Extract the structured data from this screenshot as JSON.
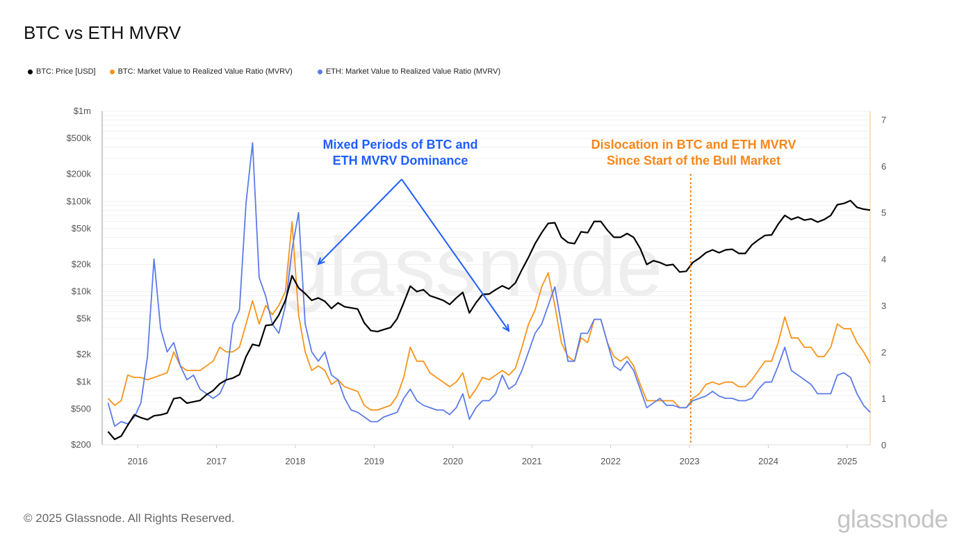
{
  "title": "BTC vs ETH MVRV",
  "footer": "© 2025 Glassnode. All Rights Reserved.",
  "logo": "glassnode",
  "watermark": "glassnode",
  "chart_data": {
    "type": "line",
    "title": "BTC vs ETH MVRV",
    "legend_placement": "top-left",
    "grid": true,
    "left_axis": {
      "scale": "log",
      "range": [
        200,
        1000000
      ],
      "ticks": [
        200,
        500,
        1000,
        2000,
        5000,
        10000,
        20000,
        50000,
        100000,
        200000,
        500000,
        1000000
      ],
      "tick_labels": [
        "$200",
        "$500",
        "$1k",
        "$2k",
        "$5k",
        "$10k",
        "$20k",
        "$50k",
        "$100k",
        "$200k",
        "$500k",
        "$1m"
      ]
    },
    "right_axis": {
      "scale": "linear",
      "range": [
        0,
        7
      ],
      "ticks": [
        0,
        1,
        2,
        3,
        4,
        5,
        6,
        7
      ],
      "tick_labels": [
        "0",
        "1",
        "2",
        "3",
        "4",
        "5",
        "6",
        "7"
      ]
    },
    "x_axis": {
      "range": [
        "2015-08",
        "2025-04"
      ],
      "tick_labels": [
        "2016",
        "2017",
        "2018",
        "2019",
        "2020",
        "2021",
        "2022",
        "2023",
        "2024",
        "2025"
      ]
    },
    "x": [
      "2015-08",
      "2015-09",
      "2015-10",
      "2015-11",
      "2015-12",
      "2016-01",
      "2016-02",
      "2016-03",
      "2016-04",
      "2016-05",
      "2016-06",
      "2016-07",
      "2016-08",
      "2016-09",
      "2016-10",
      "2016-11",
      "2016-12",
      "2017-01",
      "2017-02",
      "2017-03",
      "2017-04",
      "2017-05",
      "2017-06",
      "2017-07",
      "2017-08",
      "2017-09",
      "2017-10",
      "2017-11",
      "2017-12",
      "2018-01",
      "2018-02",
      "2018-03",
      "2018-04",
      "2018-05",
      "2018-06",
      "2018-07",
      "2018-08",
      "2018-09",
      "2018-10",
      "2018-11",
      "2018-12",
      "2019-01",
      "2019-02",
      "2019-03",
      "2019-04",
      "2019-05",
      "2019-06",
      "2019-07",
      "2019-08",
      "2019-09",
      "2019-10",
      "2019-11",
      "2019-12",
      "2020-01",
      "2020-02",
      "2020-03",
      "2020-04",
      "2020-05",
      "2020-06",
      "2020-07",
      "2020-08",
      "2020-09",
      "2020-10",
      "2020-11",
      "2020-12",
      "2021-01",
      "2021-02",
      "2021-03",
      "2021-04",
      "2021-05",
      "2021-06",
      "2021-07",
      "2021-08",
      "2021-09",
      "2021-10",
      "2021-11",
      "2021-12",
      "2022-01",
      "2022-02",
      "2022-03",
      "2022-04",
      "2022-05",
      "2022-06",
      "2022-07",
      "2022-08",
      "2022-09",
      "2022-10",
      "2022-11",
      "2022-12",
      "2023-01",
      "2023-02",
      "2023-03",
      "2023-04",
      "2023-05",
      "2023-06",
      "2023-07",
      "2023-08",
      "2023-09",
      "2023-10",
      "2023-11",
      "2023-12",
      "2024-01",
      "2024-02",
      "2024-03",
      "2024-04",
      "2024-05",
      "2024-06",
      "2024-07",
      "2024-08",
      "2024-09",
      "2024-10",
      "2024-11",
      "2024-12",
      "2025-01",
      "2025-02",
      "2025-03",
      "2025-04"
    ],
    "series": [
      {
        "name": "BTC: Price [USD]",
        "axis": "left",
        "color": "#000000",
        "values": [
          280,
          230,
          250,
          330,
          430,
          400,
          380,
          420,
          430,
          450,
          650,
          670,
          580,
          600,
          620,
          720,
          800,
          950,
          1050,
          1100,
          1200,
          1900,
          2600,
          2500,
          4200,
          4300,
          5500,
          8000,
          15000,
          11000,
          9500,
          8000,
          8500,
          7800,
          6500,
          7500,
          6800,
          6600,
          6400,
          4500,
          3700,
          3600,
          3800,
          4000,
          5000,
          7500,
          11500,
          10000,
          10500,
          9000,
          8500,
          8000,
          7200,
          8500,
          9800,
          5800,
          7500,
          9300,
          9400,
          10500,
          11600,
          10700,
          12500,
          17500,
          24000,
          34000,
          45000,
          57000,
          58000,
          40000,
          35000,
          34000,
          46000,
          45000,
          60000,
          60000,
          48000,
          40000,
          40000,
          44000,
          40000,
          30000,
          20000,
          22000,
          21000,
          19500,
          20000,
          16500,
          16800,
          21000,
          23500,
          27000,
          29000,
          27000,
          29000,
          29500,
          26500,
          26500,
          33000,
          37500,
          42000,
          42500,
          56000,
          70000,
          63000,
          67000,
          62000,
          64000,
          59000,
          63000,
          70000,
          92000,
          95000,
          102000,
          86000,
          82000,
          80000
        ]
      },
      {
        "name": "BTC: Market Value to Realized Value Ratio (MVRV)",
        "axis": "right",
        "color": "#f7931a",
        "values": [
          1.0,
          0.85,
          0.95,
          1.5,
          1.45,
          1.45,
          1.4,
          1.45,
          1.5,
          1.55,
          2.0,
          1.7,
          1.6,
          1.6,
          1.6,
          1.7,
          1.8,
          2.1,
          2.0,
          2.0,
          2.1,
          2.6,
          3.1,
          2.6,
          3.0,
          2.8,
          3.0,
          3.3,
          4.8,
          2.8,
          2.0,
          1.6,
          1.7,
          1.6,
          1.3,
          1.4,
          1.25,
          1.2,
          1.15,
          0.85,
          0.75,
          0.75,
          0.8,
          0.85,
          1.05,
          1.45,
          2.1,
          1.8,
          1.8,
          1.55,
          1.45,
          1.35,
          1.25,
          1.35,
          1.55,
          1.0,
          1.2,
          1.45,
          1.4,
          1.5,
          1.6,
          1.5,
          1.65,
          2.1,
          2.6,
          2.9,
          3.4,
          3.7,
          3.0,
          2.2,
          1.9,
          1.8,
          2.3,
          2.2,
          2.7,
          2.7,
          2.2,
          1.9,
          1.8,
          1.9,
          1.7,
          1.3,
          0.95,
          0.95,
          0.95,
          0.95,
          0.95,
          0.8,
          0.8,
          1.0,
          1.1,
          1.3,
          1.35,
          1.3,
          1.35,
          1.35,
          1.25,
          1.25,
          1.4,
          1.6,
          1.8,
          1.8,
          2.2,
          2.75,
          2.3,
          2.3,
          2.1,
          2.1,
          1.9,
          1.9,
          2.1,
          2.6,
          2.5,
          2.5,
          2.2,
          2.0,
          1.75
        ]
      },
      {
        "name": "ETH: Market Value to Realized Value Ratio (MVRV)",
        "axis": "right",
        "color": "#5b7be9",
        "values": [
          0.9,
          0.4,
          0.5,
          0.45,
          0.6,
          0.9,
          1.9,
          4.0,
          2.5,
          2.0,
          2.2,
          1.7,
          1.4,
          1.5,
          1.2,
          1.1,
          1.0,
          1.1,
          1.4,
          2.6,
          2.9,
          5.2,
          6.5,
          3.6,
          3.2,
          2.6,
          2.4,
          3.0,
          4.2,
          5.0,
          2.6,
          2.0,
          1.8,
          2.0,
          1.5,
          1.4,
          1.0,
          0.75,
          0.7,
          0.6,
          0.5,
          0.5,
          0.6,
          0.65,
          0.7,
          1.0,
          1.2,
          0.95,
          0.85,
          0.8,
          0.75,
          0.75,
          0.65,
          0.8,
          1.1,
          0.55,
          0.8,
          0.95,
          0.95,
          1.1,
          1.5,
          1.2,
          1.3,
          1.6,
          2.0,
          2.4,
          2.6,
          3.0,
          3.4,
          2.6,
          1.8,
          1.8,
          2.4,
          2.4,
          2.7,
          2.7,
          2.2,
          1.7,
          1.6,
          1.8,
          1.6,
          1.2,
          0.8,
          0.9,
          1.0,
          0.85,
          0.85,
          0.8,
          0.8,
          0.95,
          1.0,
          1.05,
          1.15,
          1.05,
          1.0,
          1.0,
          0.95,
          0.95,
          1.0,
          1.2,
          1.35,
          1.35,
          1.7,
          2.1,
          1.6,
          1.5,
          1.4,
          1.3,
          1.1,
          1.1,
          1.1,
          1.5,
          1.55,
          1.45,
          1.1,
          0.85,
          0.7
        ]
      }
    ],
    "annotations": [
      {
        "text_lines": [
          "Mixed Periods of BTC and",
          "ETH MVRV Dominance"
        ],
        "color": "#1f5eff",
        "arrows_to": [
          "2018-04",
          "2020-09"
        ]
      },
      {
        "text_lines": [
          "Dislocation in BTC and ETH MVRV",
          "Since Start of the Bull Market"
        ],
        "color": "#f7871a",
        "marker_line_at": "2023-01"
      }
    ]
  }
}
